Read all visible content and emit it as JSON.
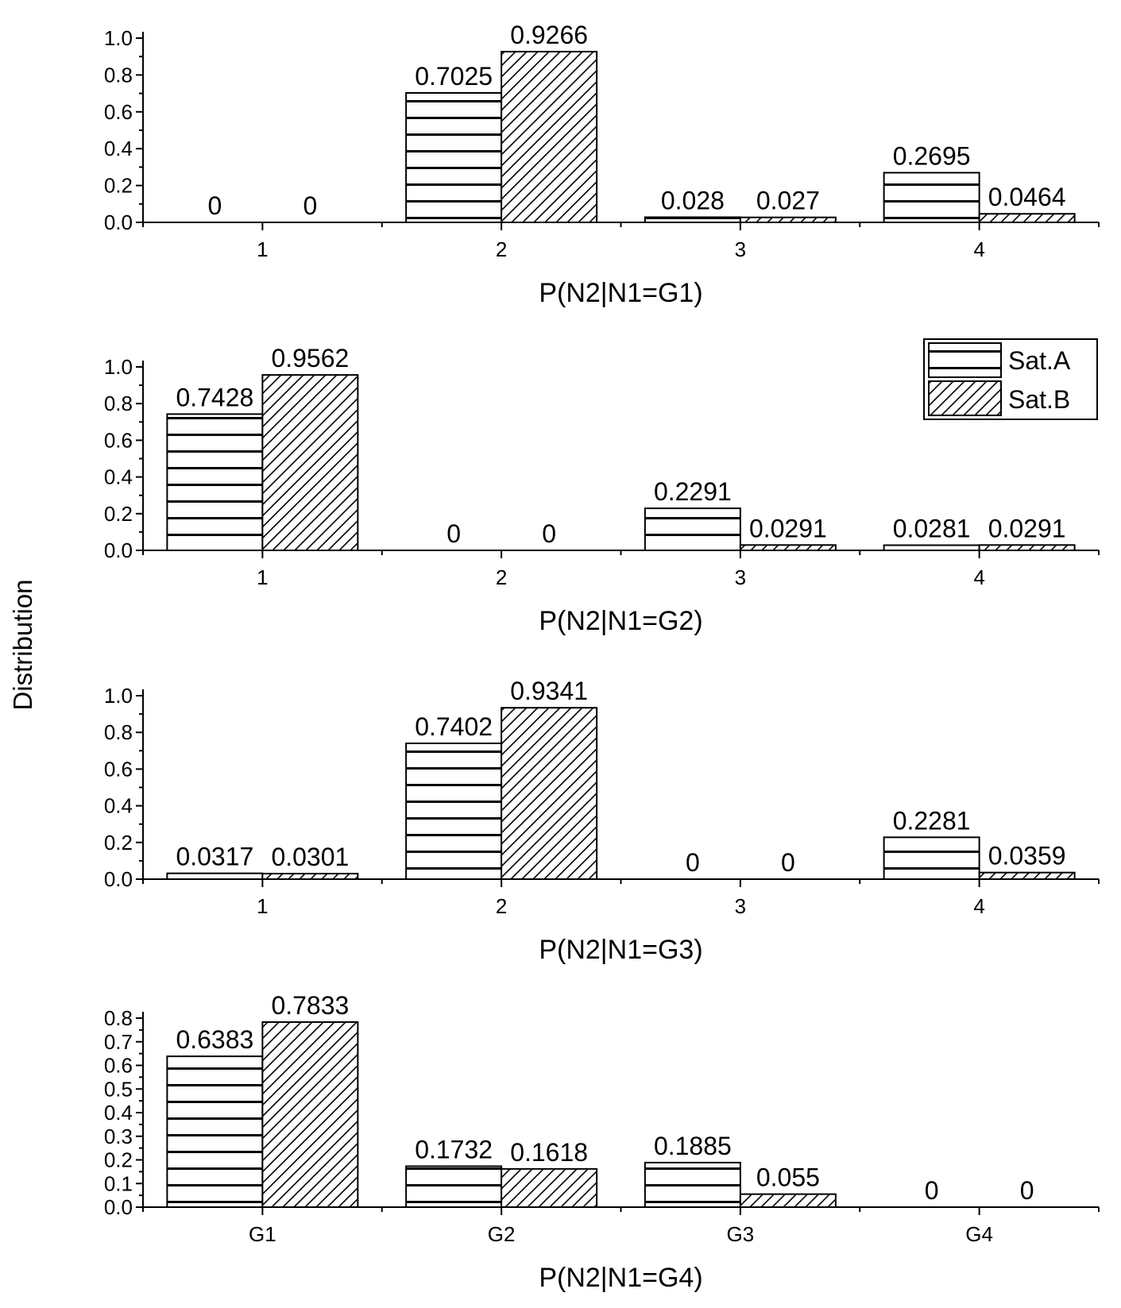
{
  "y_axis_label": "Distribution",
  "legend": {
    "items": [
      "Sat.A",
      "Sat.B"
    ]
  },
  "chart_data": [
    {
      "type": "bar",
      "xlabel": "P(N2|N1=G1)",
      "categories": [
        "1",
        "2",
        "3",
        "4"
      ],
      "ylim": [
        0,
        1.0
      ],
      "yticks": [
        "0.0",
        "0.2",
        "0.4",
        "0.6",
        "0.8",
        "1.0"
      ],
      "series": [
        {
          "name": "Sat.A",
          "values": [
            0,
            0.7025,
            0.028,
            0.2695
          ],
          "labels": [
            "0",
            "0.7025",
            "0.028",
            "0.2695"
          ]
        },
        {
          "name": "Sat.B",
          "values": [
            0,
            0.9266,
            0.027,
            0.0464
          ],
          "labels": [
            "0",
            "0.9266",
            "0.027",
            "0.0464"
          ]
        }
      ]
    },
    {
      "type": "bar",
      "xlabel": "P(N2|N1=G2)",
      "categories": [
        "1",
        "2",
        "3",
        "4"
      ],
      "ylim": [
        0,
        1.0
      ],
      "yticks": [
        "0.0",
        "0.2",
        "0.4",
        "0.6",
        "0.8",
        "1.0"
      ],
      "series": [
        {
          "name": "Sat.A",
          "values": [
            0.7428,
            0,
            0.2291,
            0.0281
          ],
          "labels": [
            "0.7428",
            "0",
            "0.2291",
            "0.0281"
          ]
        },
        {
          "name": "Sat.B",
          "values": [
            0.9562,
            0,
            0.0291,
            0.0291
          ],
          "labels": [
            "0.9562",
            "0",
            "0.0291",
            "0.0291"
          ]
        }
      ]
    },
    {
      "type": "bar",
      "xlabel": "P(N2|N1=G3)",
      "categories": [
        "1",
        "2",
        "3",
        "4"
      ],
      "ylim": [
        0,
        1.0
      ],
      "yticks": [
        "0.0",
        "0.2",
        "0.4",
        "0.6",
        "0.8",
        "1.0"
      ],
      "series": [
        {
          "name": "Sat.A",
          "values": [
            0.0317,
            0.7402,
            0,
            0.2281
          ],
          "labels": [
            "0.0317",
            "0.7402",
            "0",
            "0.2281"
          ]
        },
        {
          "name": "Sat.B",
          "values": [
            0.0301,
            0.9341,
            0,
            0.0359
          ],
          "labels": [
            "0.0301",
            "0.9341",
            "0",
            "0.0359"
          ]
        }
      ]
    },
    {
      "type": "bar",
      "xlabel": "P(N2|N1=G4)",
      "categories": [
        "G1",
        "G2",
        "G3",
        "G4"
      ],
      "ylim": [
        0,
        0.8
      ],
      "yticks": [
        "0.0",
        "0.1",
        "0.2",
        "0.3",
        "0.4",
        "0.5",
        "0.6",
        "0.7",
        "0.8"
      ],
      "series": [
        {
          "name": "Sat.A",
          "values": [
            0.6383,
            0.1732,
            0.1885,
            0
          ],
          "labels": [
            "0.6383",
            "0.1732",
            "0.1885",
            "0"
          ]
        },
        {
          "name": "Sat.B",
          "values": [
            0.7833,
            0.1618,
            0.055,
            0
          ],
          "labels": [
            "0.7833",
            "0.1618",
            "0.055",
            "0"
          ]
        }
      ]
    }
  ]
}
